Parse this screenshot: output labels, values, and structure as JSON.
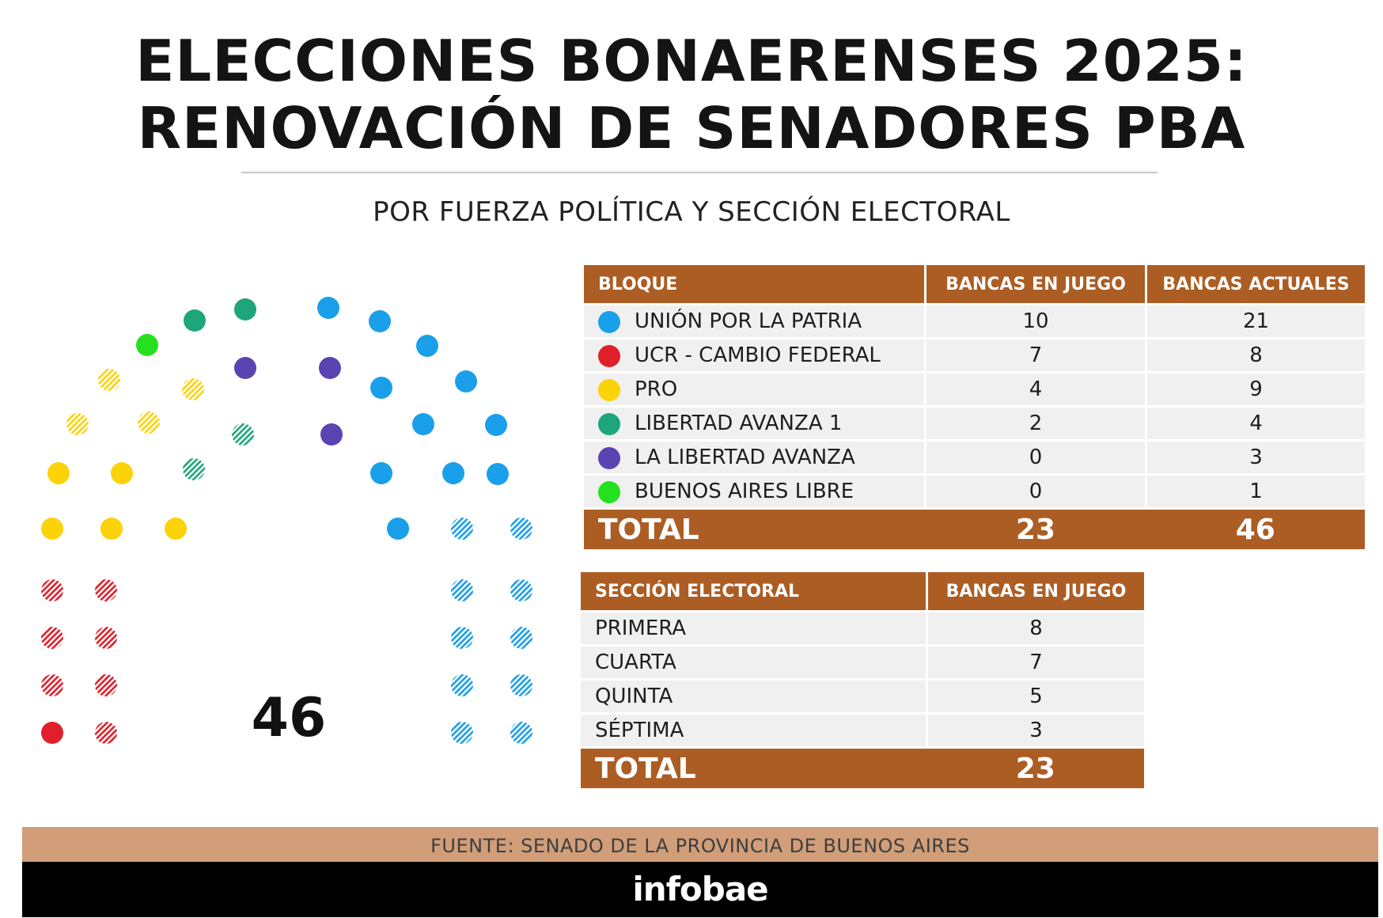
{
  "title_line1": "ELECCIONES BONAERENSES 2025:",
  "title_line2": "RENOVACIÓN DE SENADORES PBA",
  "subtitle": "POR FUERZA POLÍTICA Y SECCIÓN ELECTORAL",
  "colors": {
    "union_por_la_patria": "#1a9fea",
    "ucr_cambio_federal": "#e01f2b",
    "pro": "#fcd209",
    "libertad_avanza_1": "#1ea57a",
    "la_libertad_avanza": "#5b43b2",
    "buenos_aires_libre": "#25e01e",
    "header_brown": "#ac5d23",
    "source_bar": "#d19e79"
  },
  "chart_data": [
    {
      "type": "hemicycle",
      "total_label": "46",
      "total_seats": 46,
      "legend_note": "",
      "groups": [
        {
          "bloque": "UCR - CAMBIO FEDERAL",
          "color": "#e01f2b",
          "seats": 8,
          "in_play": 7
        },
        {
          "bloque": "PRO",
          "color": "#fcd209",
          "seats": 9,
          "in_play": 4
        },
        {
          "bloque": "BUENOS AIRES LIBRE",
          "color": "#25e01e",
          "seats": 1,
          "in_play": 0
        },
        {
          "bloque": "LIBERTAD AVANZA 1",
          "color": "#1ea57a",
          "seats": 4,
          "in_play": 2
        },
        {
          "bloque": "LA LIBERTAD AVANZA",
          "color": "#5b43b2",
          "seats": 3,
          "in_play": 0
        },
        {
          "bloque": "UNIÓN POR LA PATRIA",
          "color": "#1a9fea",
          "seats": 21,
          "in_play": 10
        }
      ]
    },
    {
      "type": "table",
      "columns": [
        "BLOQUE",
        "BANCAS EN JUEGO",
        "BANCAS ACTUALES"
      ],
      "rows": [
        {
          "bloque": "UNIÓN POR LA PATRIA",
          "color": "#1a9fea",
          "en_juego": "10",
          "actuales": "21"
        },
        {
          "bloque": "UCR - CAMBIO FEDERAL",
          "color": "#e01f2b",
          "en_juego": "7",
          "actuales": "8"
        },
        {
          "bloque": "PRO",
          "color": "#fcd209",
          "en_juego": "4",
          "actuales": "9"
        },
        {
          "bloque": "LIBERTAD AVANZA 1",
          "color": "#1ea57a",
          "en_juego": "2",
          "actuales": "4"
        },
        {
          "bloque": "LA LIBERTAD AVANZA",
          "color": "#5b43b2",
          "en_juego": "0",
          "actuales": "3"
        },
        {
          "bloque": "BUENOS AIRES LIBRE",
          "color": "#25e01e",
          "en_juego": "0",
          "actuales": "1"
        }
      ],
      "total": {
        "label": "TOTAL",
        "en_juego": "23",
        "actuales": "46"
      }
    },
    {
      "type": "table",
      "columns": [
        "SECCIÓN ELECTORAL",
        "BANCAS EN JUEGO"
      ],
      "rows": [
        {
          "seccion": "PRIMERA",
          "en_juego": "8"
        },
        {
          "seccion": "CUARTA",
          "en_juego": "7"
        },
        {
          "seccion": "QUINTA",
          "en_juego": "5"
        },
        {
          "seccion": "SÉPTIMA",
          "en_juego": "3"
        }
      ],
      "total": {
        "label": "TOTAL",
        "en_juego": "23"
      }
    }
  ],
  "footer": {
    "source": "FUENTE: SENADO DE LA PROVINCIA DE BUENOS AIRES",
    "brand": "infobae"
  }
}
